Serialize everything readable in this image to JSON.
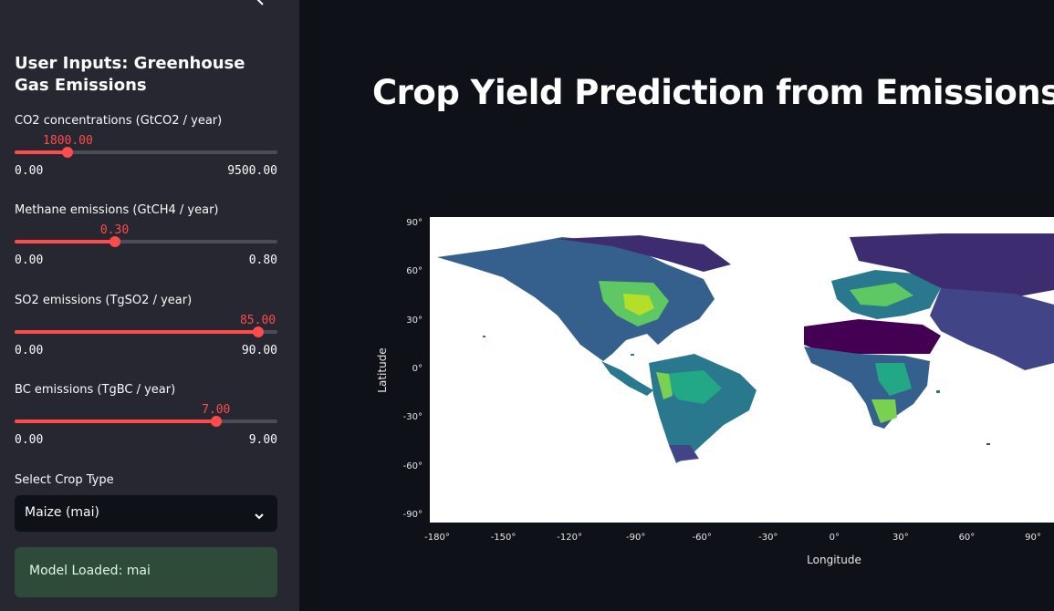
{
  "sidebar": {
    "title": "User Inputs: Greenhouse Gas Emissions",
    "sliders": [
      {
        "label": "CO2 concentrations (GtCO2 / year)",
        "value": "1800.00",
        "min": "0.00",
        "max": "9500.00",
        "fraction": 0.19
      },
      {
        "label": "Methane emissions (GtCH4 / year)",
        "value": "0.30",
        "min": "0.00",
        "max": "0.80",
        "fraction": 0.375
      },
      {
        "label": "SO2 emissions (TgSO2 / year)",
        "value": "85.00",
        "min": "0.00",
        "max": "90.00",
        "fraction": 0.944
      },
      {
        "label": "BC emissions (TgBC / year)",
        "value": "7.00",
        "min": "0.00",
        "max": "9.00",
        "fraction": 0.778
      }
    ],
    "crop_select": {
      "label": "Select Crop Type",
      "value": "Maize (mai)"
    },
    "status": "Model Loaded: mai"
  },
  "main": {
    "title": "Crop Yield Prediction from Emissions"
  },
  "colors": {
    "accent": "#ff4b4b",
    "background": "#0e1117",
    "sidebar": "#262730",
    "success_bg": "#2e4b3a"
  },
  "chart_data": {
    "type": "heatmap",
    "xlabel": "Longitude",
    "ylabel": "Latitude",
    "x_ticks": [
      "-180°",
      "-150°",
      "-120°",
      "-90°",
      "-60°",
      "-30°",
      "0°",
      "30°",
      "60°",
      "90°"
    ],
    "y_ticks": [
      "90°",
      "60°",
      "30°",
      "0°",
      "-30°",
      "-60°",
      "-90°"
    ],
    "xlim": [
      -180,
      100
    ],
    "ylim": [
      -90,
      90
    ],
    "colorscale": "viridis",
    "grid": false,
    "legend": "none"
  }
}
